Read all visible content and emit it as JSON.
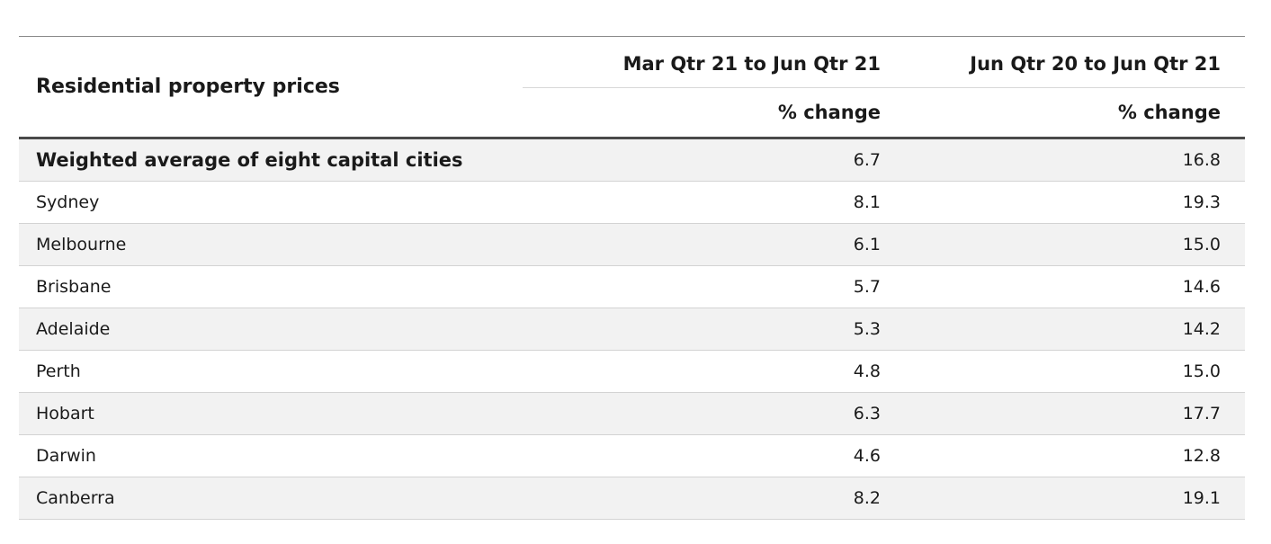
{
  "table": {
    "title": "Residential property prices",
    "columns": [
      {
        "period": "Mar Qtr 21 to Jun Qtr 21",
        "unit": "% change"
      },
      {
        "period": "Jun Qtr 20 to Jun Qtr 21",
        "unit": "% change"
      }
    ],
    "rows": [
      {
        "label": "Weighted average of eight capital cities",
        "v1": "6.7",
        "v2": "16.8",
        "bold": true
      },
      {
        "label": "Sydney",
        "v1": "8.1",
        "v2": "19.3"
      },
      {
        "label": "Melbourne",
        "v1": "6.1",
        "v2": "15.0"
      },
      {
        "label": "Brisbane",
        "v1": "5.7",
        "v2": "14.6"
      },
      {
        "label": "Adelaide",
        "v1": "5.3",
        "v2": "14.2"
      },
      {
        "label": "Perth",
        "v1": "4.8",
        "v2": "15.0"
      },
      {
        "label": "Hobart",
        "v1": "6.3",
        "v2": "17.7"
      },
      {
        "label": "Darwin",
        "v1": "4.6",
        "v2": "12.8"
      },
      {
        "label": "Canberra",
        "v1": "8.2",
        "v2": "19.1"
      }
    ]
  }
}
